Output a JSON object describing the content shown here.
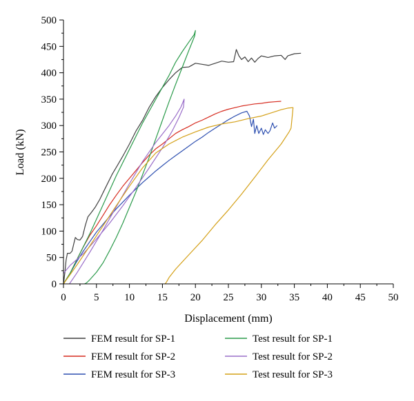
{
  "chart_data": {
    "type": "line",
    "title": "",
    "xlabel": "Displacement (mm)",
    "ylabel": "Load (kN)",
    "xlim": [
      0,
      50
    ],
    "ylim": [
      0,
      500
    ],
    "xticks": [
      0,
      5,
      10,
      15,
      20,
      25,
      30,
      35,
      40,
      45,
      50
    ],
    "yticks": [
      0,
      50,
      100,
      150,
      200,
      250,
      300,
      350,
      400,
      450,
      500
    ],
    "grid": false,
    "legend_position": "bottom",
    "series": [
      {
        "name": "FEM result for SP-1",
        "color": "#3f3f3f",
        "points": [
          [
            0,
            0
          ],
          [
            0.2,
            20
          ],
          [
            0.4,
            45
          ],
          [
            0.6,
            58
          ],
          [
            1.0,
            58
          ],
          [
            1.3,
            62
          ],
          [
            1.6,
            78
          ],
          [
            1.8,
            88
          ],
          [
            2.1,
            84
          ],
          [
            2.5,
            83
          ],
          [
            2.9,
            90
          ],
          [
            3.3,
            110
          ],
          [
            3.7,
            127
          ],
          [
            4.2,
            135
          ],
          [
            4.8,
            145
          ],
          [
            5.5,
            160
          ],
          [
            6.2,
            178
          ],
          [
            6.8,
            193
          ],
          [
            7.4,
            208
          ],
          [
            8.2,
            225
          ],
          [
            9.0,
            242
          ],
          [
            10.0,
            265
          ],
          [
            11.0,
            290
          ],
          [
            12.0,
            310
          ],
          [
            13.0,
            335
          ],
          [
            14.0,
            355
          ],
          [
            15.0,
            372
          ],
          [
            16.0,
            387
          ],
          [
            17.0,
            400
          ],
          [
            18.0,
            410
          ],
          [
            19.0,
            411
          ],
          [
            20.0,
            418
          ],
          [
            21.0,
            416
          ],
          [
            22.0,
            414
          ],
          [
            23.0,
            418
          ],
          [
            24.0,
            422
          ],
          [
            25.0,
            420
          ],
          [
            25.8,
            421
          ],
          [
            26.2,
            444
          ],
          [
            26.6,
            432
          ],
          [
            27.0,
            425
          ],
          [
            27.5,
            430
          ],
          [
            28.0,
            421
          ],
          [
            28.5,
            428
          ],
          [
            29.0,
            420
          ],
          [
            29.5,
            427
          ],
          [
            30.0,
            432
          ],
          [
            31.0,
            429
          ],
          [
            32.0,
            432
          ],
          [
            33.0,
            433
          ],
          [
            33.6,
            425
          ],
          [
            34.0,
            432
          ],
          [
            35.0,
            436
          ],
          [
            36.0,
            437
          ]
        ]
      },
      {
        "name": "FEM result for SP-2",
        "color": "#d62a1e",
        "points": [
          [
            0,
            0
          ],
          [
            1,
            20
          ],
          [
            2,
            45
          ],
          [
            3,
            70
          ],
          [
            4,
            92
          ],
          [
            5,
            110
          ],
          [
            6,
            130
          ],
          [
            7,
            150
          ],
          [
            8,
            168
          ],
          [
            9,
            185
          ],
          [
            10,
            200
          ],
          [
            11,
            215
          ],
          [
            12,
            230
          ],
          [
            13,
            244
          ],
          [
            14,
            256
          ],
          [
            15,
            265
          ],
          [
            16,
            275
          ],
          [
            17,
            285
          ],
          [
            18,
            292
          ],
          [
            19,
            298
          ],
          [
            20,
            305
          ],
          [
            21,
            310
          ],
          [
            22,
            316
          ],
          [
            23,
            322
          ],
          [
            24,
            327
          ],
          [
            25,
            331
          ],
          [
            26,
            334
          ],
          [
            27,
            337
          ],
          [
            28,
            339
          ],
          [
            29,
            341
          ],
          [
            30,
            342
          ],
          [
            31,
            344
          ],
          [
            32,
            345
          ],
          [
            33,
            346
          ]
        ]
      },
      {
        "name": "FEM result for SP-3",
        "color": "#2d4fb0",
        "points": [
          [
            0,
            0
          ],
          [
            1,
            20
          ],
          [
            2,
            42
          ],
          [
            3,
            62
          ],
          [
            4,
            80
          ],
          [
            5,
            98
          ],
          [
            6,
            113
          ],
          [
            7,
            128
          ],
          [
            8,
            142
          ],
          [
            9,
            155
          ],
          [
            10,
            168
          ],
          [
            11,
            180
          ],
          [
            12,
            192
          ],
          [
            13,
            203
          ],
          [
            14,
            214
          ],
          [
            15,
            224
          ],
          [
            16,
            234
          ],
          [
            17,
            243
          ],
          [
            18,
            252
          ],
          [
            19,
            261
          ],
          [
            20,
            270
          ],
          [
            21,
            278
          ],
          [
            22,
            287
          ],
          [
            23,
            295
          ],
          [
            24,
            303
          ],
          [
            25,
            311
          ],
          [
            26,
            318
          ],
          [
            27,
            324
          ],
          [
            27.8,
            327
          ],
          [
            28.2,
            318
          ],
          [
            28.5,
            298
          ],
          [
            28.8,
            312
          ],
          [
            29.0,
            285
          ],
          [
            29.3,
            300
          ],
          [
            29.6,
            285
          ],
          [
            30.0,
            295
          ],
          [
            30.3,
            283
          ],
          [
            30.6,
            292
          ],
          [
            31.0,
            285
          ],
          [
            31.3,
            290
          ],
          [
            31.7,
            305
          ],
          [
            32.0,
            295
          ],
          [
            32.4,
            300
          ]
        ]
      },
      {
        "name": "Test result for SP-1",
        "color": "#2a9a4a",
        "points": [
          [
            0,
            0
          ],
          [
            1,
            20
          ],
          [
            2,
            45
          ],
          [
            4,
            95
          ],
          [
            6,
            150
          ],
          [
            8,
            205
          ],
          [
            10,
            255
          ],
          [
            12,
            305
          ],
          [
            14,
            350
          ],
          [
            16,
            395
          ],
          [
            17,
            420
          ],
          [
            18,
            440
          ],
          [
            19,
            458
          ],
          [
            19.8,
            472
          ],
          [
            20.0,
            480
          ],
          [
            19.9,
            470
          ],
          [
            19.0,
            442
          ],
          [
            18.0,
            410
          ],
          [
            17.0,
            378
          ],
          [
            16.0,
            345
          ],
          [
            15.0,
            310
          ],
          [
            14.0,
            275
          ],
          [
            13.0,
            240
          ],
          [
            12.0,
            207
          ],
          [
            11.0,
            175
          ],
          [
            10.0,
            145
          ],
          [
            9.0,
            115
          ],
          [
            8.0,
            88
          ],
          [
            7.0,
            63
          ],
          [
            6.0,
            40
          ],
          [
            5.0,
            22
          ],
          [
            4.0,
            8
          ],
          [
            3.5,
            2
          ],
          [
            3.2,
            0
          ]
        ]
      },
      {
        "name": "Test result for SP-2",
        "color": "#9a6ec9",
        "points": [
          [
            0.9,
            0
          ],
          [
            2,
            20
          ],
          [
            4,
            60
          ],
          [
            6,
            102
          ],
          [
            8,
            146
          ],
          [
            10,
            190
          ],
          [
            12,
            232
          ],
          [
            14,
            268
          ],
          [
            16,
            300
          ],
          [
            17,
            318
          ],
          [
            17.8,
            335
          ],
          [
            18.3,
            350
          ],
          [
            18.2,
            335
          ],
          [
            17.5,
            315
          ],
          [
            16.5,
            290
          ],
          [
            15,
            258
          ],
          [
            13,
            220
          ],
          [
            11,
            183
          ],
          [
            9,
            148
          ],
          [
            7,
            115
          ],
          [
            5,
            85
          ],
          [
            3,
            57
          ],
          [
            1,
            35
          ],
          [
            0,
            20
          ]
        ]
      },
      {
        "name": "Test result for SP-3",
        "color": "#d4a017",
        "points": [
          [
            0,
            0
          ],
          [
            2,
            35
          ],
          [
            4,
            72
          ],
          [
            6,
            110
          ],
          [
            8,
            148
          ],
          [
            10,
            185
          ],
          [
            12,
            220
          ],
          [
            14,
            248
          ],
          [
            16,
            265
          ],
          [
            18,
            278
          ],
          [
            20,
            288
          ],
          [
            22,
            297
          ],
          [
            24,
            303
          ],
          [
            26,
            307
          ],
          [
            28,
            313
          ],
          [
            30,
            318
          ],
          [
            31,
            322
          ],
          [
            32,
            326
          ],
          [
            33,
            330
          ],
          [
            34,
            333
          ],
          [
            34.8,
            334
          ],
          [
            34.7,
            320
          ],
          [
            34.5,
            295
          ],
          [
            34.2,
            288
          ],
          [
            33,
            265
          ],
          [
            31,
            235
          ],
          [
            29,
            202
          ],
          [
            27,
            170
          ],
          [
            25,
            140
          ],
          [
            23,
            112
          ],
          [
            21,
            82
          ],
          [
            19,
            55
          ],
          [
            17,
            28
          ],
          [
            16,
            12
          ],
          [
            15.6,
            3
          ],
          [
            15.4,
            0
          ]
        ]
      }
    ]
  }
}
